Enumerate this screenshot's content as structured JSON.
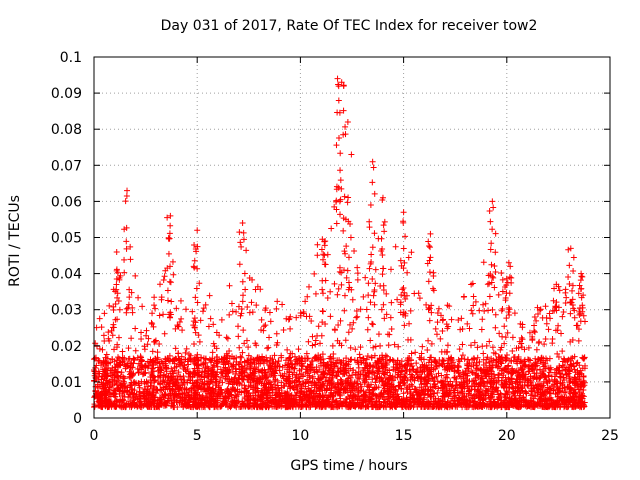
{
  "chart_data": {
    "type": "scatter",
    "title": "Day 031 of 2017, Rate Of TEC Index for receiver tow2",
    "xlabel": "GPS time / hours",
    "ylabel": "ROTI / TECUs",
    "xlim": [
      0,
      25
    ],
    "ylim": [
      0,
      0.1
    ],
    "xticks": [
      0,
      5,
      10,
      15,
      20,
      25
    ],
    "xtick_labels": [
      "0",
      "5",
      "10",
      "15",
      "20",
      "25"
    ],
    "yticks": [
      0,
      0.01,
      0.02,
      0.03,
      0.04,
      0.05,
      0.06,
      0.07,
      0.08,
      0.09,
      0.1
    ],
    "ytick_labels": [
      "0",
      "0.01",
      "0.02",
      "0.03",
      "0.04",
      "0.05",
      "0.06",
      "0.07",
      "0.08",
      "0.09",
      "0.1"
    ],
    "grid": true,
    "marker": "+",
    "color": "#ff0000",
    "x_range_of_data": [
      0,
      23.8
    ],
    "notable_peaks": [
      {
        "x": 1.1,
        "y": 0.046
      },
      {
        "x": 1.6,
        "y": 0.063
      },
      {
        "x": 3.7,
        "y": 0.056
      },
      {
        "x": 5.0,
        "y": 0.052
      },
      {
        "x": 7.2,
        "y": 0.054
      },
      {
        "x": 11.2,
        "y": 0.049
      },
      {
        "x": 11.8,
        "y": 0.094
      },
      {
        "x": 12.0,
        "y": 0.093
      },
      {
        "x": 12.3,
        "y": 0.082
      },
      {
        "x": 13.5,
        "y": 0.071
      },
      {
        "x": 14.0,
        "y": 0.061
      },
      {
        "x": 15.0,
        "y": 0.057
      },
      {
        "x": 16.3,
        "y": 0.051
      },
      {
        "x": 19.3,
        "y": 0.06
      },
      {
        "x": 20.1,
        "y": 0.043
      },
      {
        "x": 22.4,
        "y": 0.037
      },
      {
        "x": 23.1,
        "y": 0.047
      },
      {
        "x": 23.6,
        "y": 0.04
      }
    ],
    "activity_envelope": [
      {
        "x": 0,
        "y": 0.025
      },
      {
        "x": 1,
        "y": 0.036
      },
      {
        "x": 1.6,
        "y": 0.05
      },
      {
        "x": 2.5,
        "y": 0.028
      },
      {
        "x": 3.7,
        "y": 0.045
      },
      {
        "x": 4.5,
        "y": 0.03
      },
      {
        "x": 6,
        "y": 0.036
      },
      {
        "x": 7.3,
        "y": 0.04
      },
      {
        "x": 9,
        "y": 0.032
      },
      {
        "x": 10,
        "y": 0.03
      },
      {
        "x": 11.9,
        "y": 0.075
      },
      {
        "x": 12.8,
        "y": 0.04
      },
      {
        "x": 13.6,
        "y": 0.058
      },
      {
        "x": 15,
        "y": 0.052
      },
      {
        "x": 16.2,
        "y": 0.038
      },
      {
        "x": 17.5,
        "y": 0.03
      },
      {
        "x": 19.3,
        "y": 0.048
      },
      {
        "x": 20.5,
        "y": 0.03
      },
      {
        "x": 22.5,
        "y": 0.032
      },
      {
        "x": 23.3,
        "y": 0.042
      },
      {
        "x": 23.8,
        "y": 0.03
      }
    ],
    "baseline_band": [
      0.003,
      0.017
    ]
  }
}
